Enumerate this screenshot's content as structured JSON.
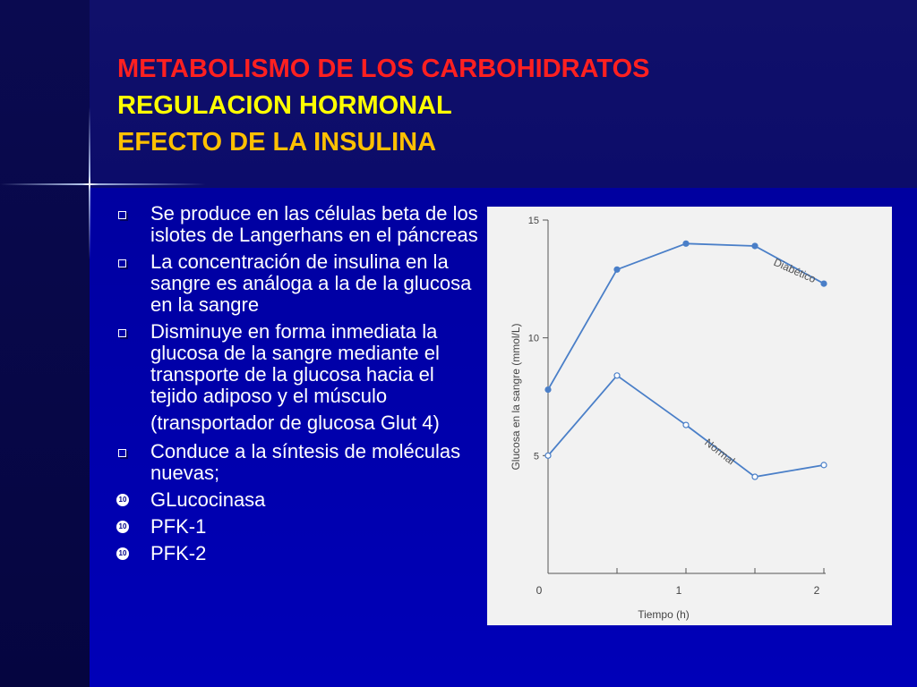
{
  "title": {
    "line1": "METABOLISMO DE LOS CARBOHIDRATOS",
    "line2": "REGULACION HORMONAL",
    "line3": "EFECTO DE LA INSULINA"
  },
  "bullets": [
    {
      "marker": "square",
      "text": "Se produce en las células beta de los islotes de Langerhans en el páncreas"
    },
    {
      "marker": "square",
      "text": "La concentración de insulina en la sangre es análoga a la de la glucosa en la sangre"
    },
    {
      "marker": "square",
      "text": "Disminuye en forma inmediata la glucosa de la sangre mediante el transporte de la glucosa hacia el tejido adiposo y el músculo"
    },
    {
      "marker": "none",
      "text": "(transportador de glucosa Glut 4)"
    },
    {
      "marker": "square",
      "text": "Conduce a la síntesis de moléculas nuevas;"
    },
    {
      "marker": "round",
      "text": "GLucocinasa"
    },
    {
      "marker": "round",
      "text": "PFK-1"
    },
    {
      "marker": "round",
      "text": "PFK-2"
    }
  ],
  "bullet_icon_glyph": "10",
  "chart_data": {
    "type": "line",
    "xlabel": "Tiempo (h)",
    "ylabel": "Glucosa en la sangre (mmol/L)",
    "xlim": [
      0,
      2
    ],
    "ylim": [
      0,
      15
    ],
    "x_ticks": [
      0,
      0.5,
      1,
      1.5,
      2
    ],
    "x_tick_labels": [
      "0",
      "",
      "1",
      "",
      "2"
    ],
    "y_ticks": [
      5,
      10,
      15
    ],
    "y_tick_labels": [
      "5",
      "10",
      "15"
    ],
    "line_color": "#4a7fc8",
    "series": [
      {
        "name": "Diabético",
        "marker": "filled",
        "x": [
          0,
          0.5,
          1,
          1.5,
          2
        ],
        "y": [
          7.8,
          12.9,
          14.0,
          13.9,
          12.3
        ]
      },
      {
        "name": "Normal",
        "marker": "open",
        "x": [
          0,
          0.5,
          1,
          1.5,
          2
        ],
        "y": [
          5.0,
          8.4,
          6.3,
          4.1,
          4.6
        ]
      }
    ]
  }
}
